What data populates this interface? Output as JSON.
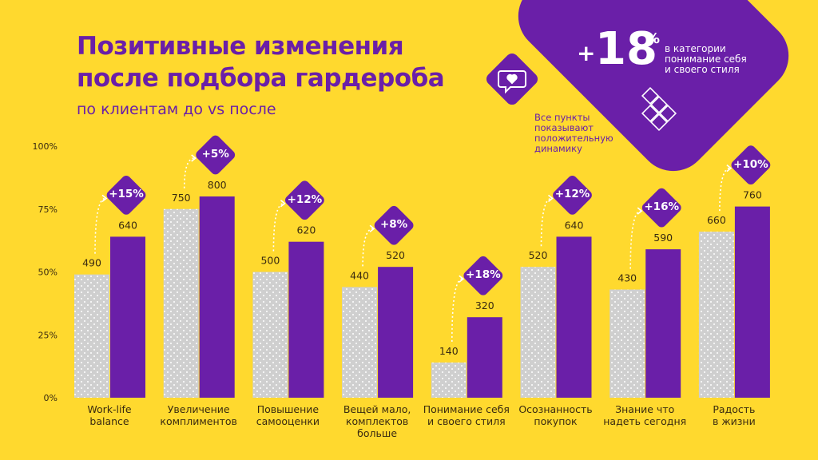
{
  "title_lines": [
    "Позитивные изменения",
    "после подбора гардероба"
  ],
  "subtitle": "по клиентам до vs после",
  "note_lines": [
    "Все пункты",
    "показывают",
    "положительную",
    "динамику"
  ],
  "callout": {
    "plus": "+",
    "number": "18",
    "percent": "%",
    "lines": [
      "в категории",
      "понимание себя",
      "и своего стиля"
    ]
  },
  "icons": {
    "message": "heart-message-icon",
    "puzzle": "puzzle-icon"
  },
  "colors": {
    "background": "#FFD92E",
    "accent": "#6A1FA8",
    "before_bar": "#CFCFCF",
    "text": "#3a2a10"
  },
  "chart_data": {
    "type": "bar",
    "categories": [
      [
        "Work-life",
        "balance"
      ],
      [
        "Увеличение",
        "комплиментов"
      ],
      [
        "Повышение",
        "самооценки"
      ],
      [
        "Вещей мало,",
        "комплектов больше"
      ],
      [
        "Понимание себя",
        "и своего стиля"
      ],
      [
        "Осознанность",
        "покупок"
      ],
      [
        "Знание что",
        "надеть сегодня"
      ],
      [
        "Радость",
        "в жизни"
      ]
    ],
    "series": [
      {
        "values": [
          490,
          750,
          500,
          440,
          140,
          520,
          430,
          660
        ]
      },
      {
        "values": [
          640,
          800,
          620,
          520,
          320,
          640,
          590,
          760
        ]
      }
    ],
    "changes": [
      "+15%",
      "+5%",
      "+12%",
      "+8%",
      "+18%",
      "+12%",
      "+16%",
      "+10%"
    ],
    "y_ticks": [
      "0%",
      "25%",
      "50%",
      "75%",
      "100%"
    ],
    "ylim": [
      0,
      1000
    ],
    "grid": false
  }
}
